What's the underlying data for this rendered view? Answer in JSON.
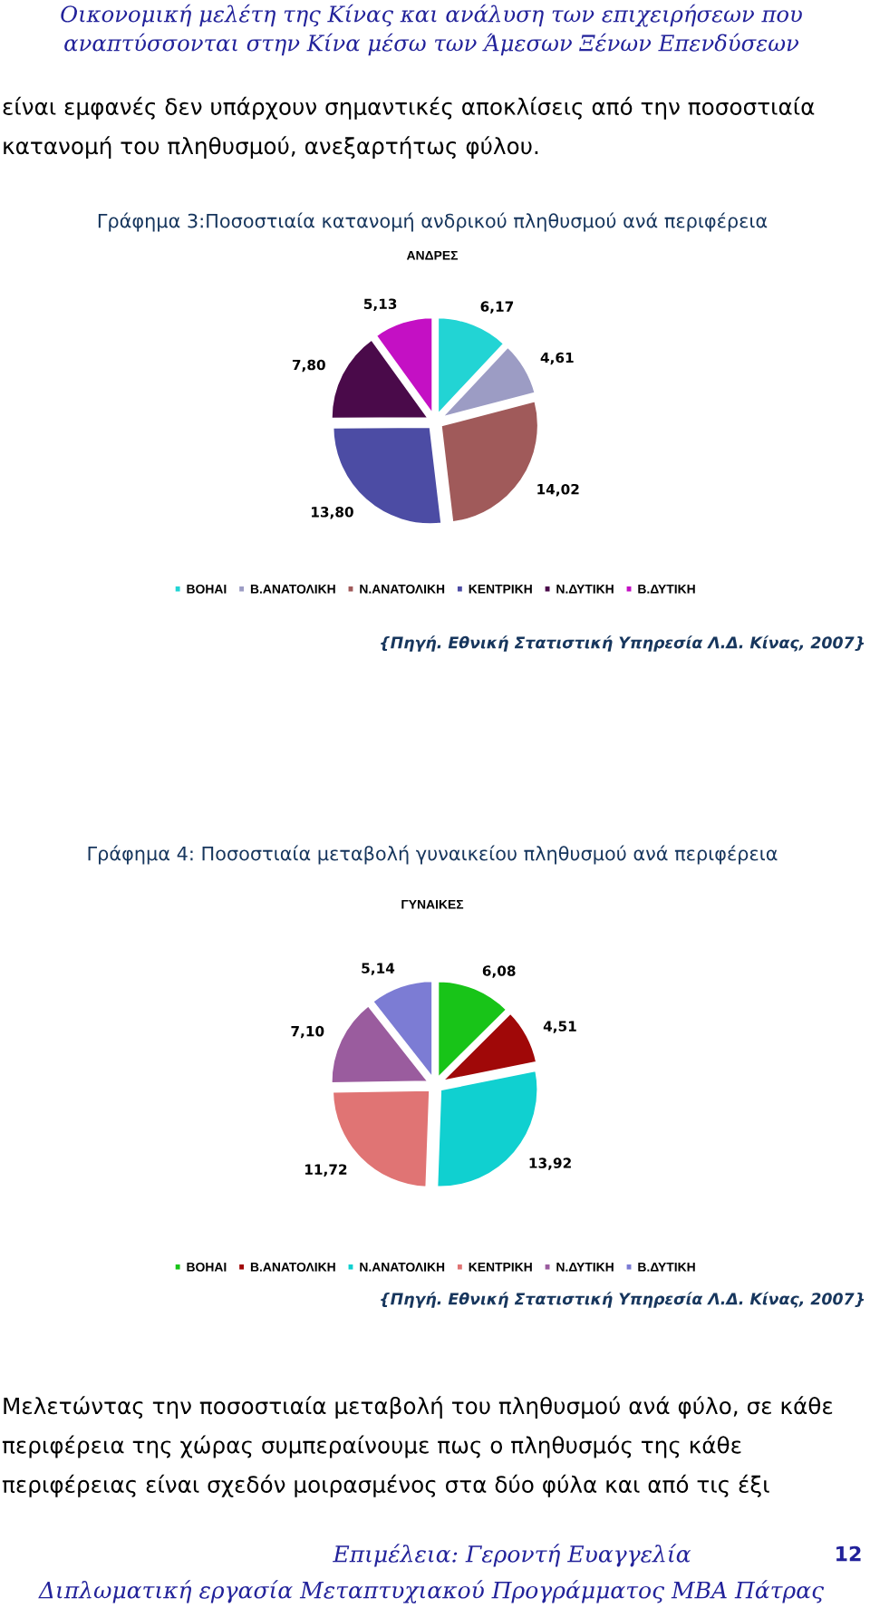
{
  "chart_data": [
    {
      "type": "pie",
      "title": "Γράφημα 3:Ποσοστιαία κατανομή ανδρικού πληθυσμού ανά περιφέρεια",
      "subtitle": "ΑΝΔΡΕΣ",
      "categories": [
        "ΒΟΗΑΙ",
        "Β.ΑΝΑΤΟΛΙΚΗ",
        "Ν.ΑΝΑΤΟΛΙΚΗ",
        "ΚΕΝΤΡΙΚΗ",
        "Ν.ΔΥΤΙΚΗ",
        "Β.ΔΥΤΙΚΗ"
      ],
      "values": [
        6.17,
        4.61,
        14.02,
        13.8,
        7.8,
        5.13
      ],
      "value_labels": [
        "6,17",
        "4,61",
        "14,02",
        "13,80",
        "7,80",
        "5,13"
      ],
      "colors": [
        "#22d4d4",
        "#9c9cc4",
        "#a05a5a",
        "#4c4ca4",
        "#4a0a4a",
        "#c410c4"
      ],
      "legend": "bottom",
      "annotations": [
        "Οικονομική μελέτη της Κίνας και ανάλυση των επιχειρήσεων που\nαναπτύσσονται στην Κίνα μέσω των Άμεσων Ξένων Επενδύσεων",
        "είναι εμφανές δεν υπάρχουν σημαντικές αποκλίσεις από την ποσοστιαία\nκατανομή του πληθυσμού, ανεξαρτήτως φύλου.",
        "{Πηγή. Εθνική Στατιστική Υπηρεσία Λ.Δ. Κίνας, 2007}"
      ]
    },
    {
      "type": "pie",
      "title": "Γράφημα 4: Ποσοστιαία μεταβολή γυναικείου πληθυσμού ανά περιφέρεια",
      "subtitle": "ΓΥΝΑΙΚΕΣ",
      "categories": [
        "ΒΟΗΑΙ",
        "Β.ΑΝΑΤΟΛΙΚΗ",
        "Ν.ΑΝΑΤΟΛΙΚΗ",
        "ΚΕΝΤΡΙΚΗ",
        "Ν.ΔΥΤΙΚΗ",
        "Β.ΔΥΤΙΚΗ"
      ],
      "values": [
        6.08,
        4.51,
        13.92,
        11.72,
        7.1,
        5.14
      ],
      "value_labels": [
        "6,08",
        "4,51",
        "13,92",
        "11,72",
        "7,10",
        "5,14"
      ],
      "colors": [
        "#18c418",
        "#a00808",
        "#10d0d0",
        "#e07474",
        "#9a5c9e",
        "#7c7cd4"
      ],
      "legend": "bottom",
      "annotations": [
        "{Πηγή. Εθνική Στατιστική Υπηρεσία Λ.Δ. Κίνας, 2007}",
        "Μελετώντας την ποσοστιαία μεταβολή του πληθυσμού ανά φύλο, σε κάθε\nπεριφέρεια της χώρας συμπεραίνουμε πως ο πληθυσμός της κάθε\nπεριφέρειας είναι σχεδόν μοιρασμένος στα δύο φύλα και από τις έξι",
        "Επιμέλεια: Γεροντή Ευαγγελία",
        "12",
        "Διπλωματική εργασία Μεταπτυχιακού Προγράμματος ΜΒΑ Πάτρας"
      ]
    }
  ]
}
